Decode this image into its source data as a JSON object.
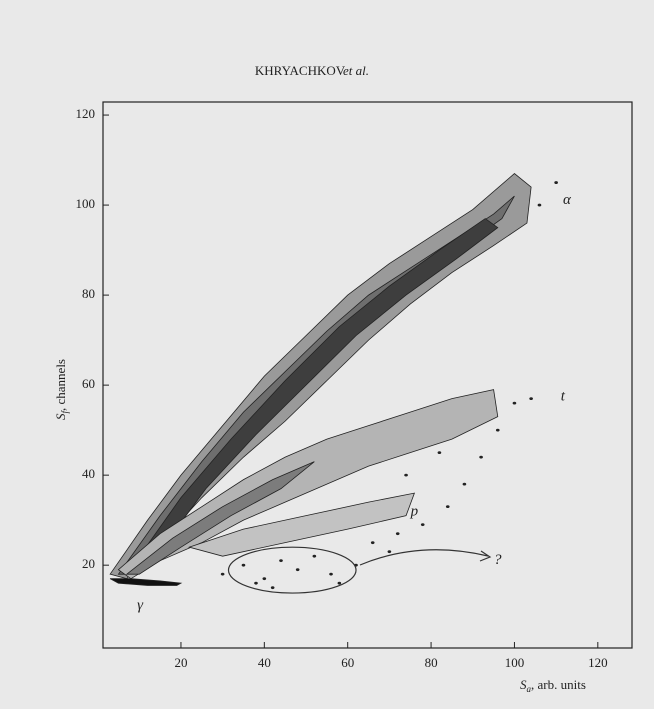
{
  "header": {
    "authors": "KHRYACHKOV",
    "etal": "et al."
  },
  "chart_data": {
    "type": "contour",
    "x_label": {
      "main": "S",
      "sub": "a",
      "rest": ", arb. units"
    },
    "y_label": {
      "main": "S",
      "sub": "f",
      "rest": ", channels"
    },
    "xlim": [
      1.3,
      128.2
    ],
    "ylim": [
      1.6,
      122.9
    ],
    "xticks": [
      20,
      40,
      60,
      80,
      100,
      120
    ],
    "yticks": [
      20,
      40,
      60,
      80,
      100,
      120
    ],
    "regions": [
      {
        "color": "#9a9a9a",
        "x": [
          3,
          12,
          20,
          30,
          40,
          50,
          60,
          70,
          80,
          90,
          100,
          104,
          103,
          95,
          85,
          75,
          65,
          55,
          45,
          35,
          25,
          15,
          7
        ],
        "y": [
          18,
          30,
          40,
          51,
          62,
          71,
          80,
          87,
          93,
          99,
          107,
          104,
          96,
          91,
          85,
          78,
          70,
          61,
          52,
          44,
          35,
          25,
          17
        ]
      },
      {
        "color": "#6e6e6e",
        "x": [
          5,
          15,
          25,
          35,
          45,
          55,
          65,
          75,
          85,
          95,
          100,
          97,
          88,
          78,
          68,
          58,
          48,
          38,
          28,
          18,
          8
        ],
        "y": [
          18,
          31,
          43,
          54,
          63,
          72,
          80,
          86,
          92,
          98,
          102,
          97,
          91,
          85,
          77,
          69,
          60,
          51,
          41,
          29,
          18
        ]
      },
      {
        "color": "#3e3e3e",
        "x": [
          7,
          20,
          32,
          45,
          58,
          70,
          82,
          93,
          96,
          86,
          74,
          62,
          50,
          38,
          26,
          14
        ],
        "y": [
          18,
          35,
          48,
          61,
          73,
          82,
          90,
          97,
          95,
          88,
          80,
          71,
          60,
          49,
          37,
          22
        ]
      },
      {
        "color": "#b4b4b4",
        "x": [
          5,
          15,
          25,
          35,
          45,
          55,
          65,
          75,
          85,
          95,
          96,
          85,
          75,
          65,
          55,
          45,
          35,
          25,
          15,
          8
        ],
        "y": [
          19,
          27,
          33,
          39,
          44,
          48,
          51,
          54,
          57,
          59,
          53,
          48,
          45,
          42,
          38,
          34,
          30,
          25,
          21,
          17
        ]
      },
      {
        "color": "#7c7c7c",
        "x": [
          7,
          18,
          30,
          42,
          52,
          44,
          32,
          20,
          10
        ],
        "y": [
          18,
          26,
          33,
          39,
          43,
          37,
          31,
          24,
          18
        ]
      },
      {
        "color": "#c2c2c2",
        "x": [
          22,
          35,
          50,
          65,
          76,
          74,
          60,
          45,
          30
        ],
        "y": [
          24,
          28,
          31,
          34,
          36,
          31,
          28,
          25,
          22
        ]
      },
      {
        "color": "#111111",
        "x": [
          3,
          8,
          15,
          20,
          19,
          12,
          5
        ],
        "y": [
          17,
          17,
          16.5,
          16,
          15.5,
          15.5,
          16
        ]
      }
    ],
    "points": {
      "x": [
        30,
        35,
        40,
        44,
        48,
        52,
        56,
        38,
        62,
        66,
        70,
        72,
        78,
        84,
        88,
        92,
        96,
        100,
        104,
        106,
        110,
        42,
        58,
        74,
        82
      ],
      "y": [
        18,
        20,
        17,
        21,
        19,
        22,
        18,
        16,
        20,
        25,
        23,
        27,
        29,
        33,
        38,
        44,
        50,
        56,
        57,
        100,
        105,
        15,
        16,
        40,
        45
      ]
    },
    "ellipse": {
      "x": 46.7,
      "y": 18.9,
      "rx": 15.3,
      "ry": 5.1
    },
    "annotations": [
      {
        "text": "α",
        "x": 112.6,
        "y": 101
      },
      {
        "text": "t",
        "x": 111.6,
        "y": 57.3
      },
      {
        "text": "p",
        "x": 76,
        "y": 31.8
      },
      {
        "text": "?",
        "x": 96,
        "y": 21
      },
      {
        "text": "γ",
        "x": 10.2,
        "y": 10.9
      }
    ]
  }
}
